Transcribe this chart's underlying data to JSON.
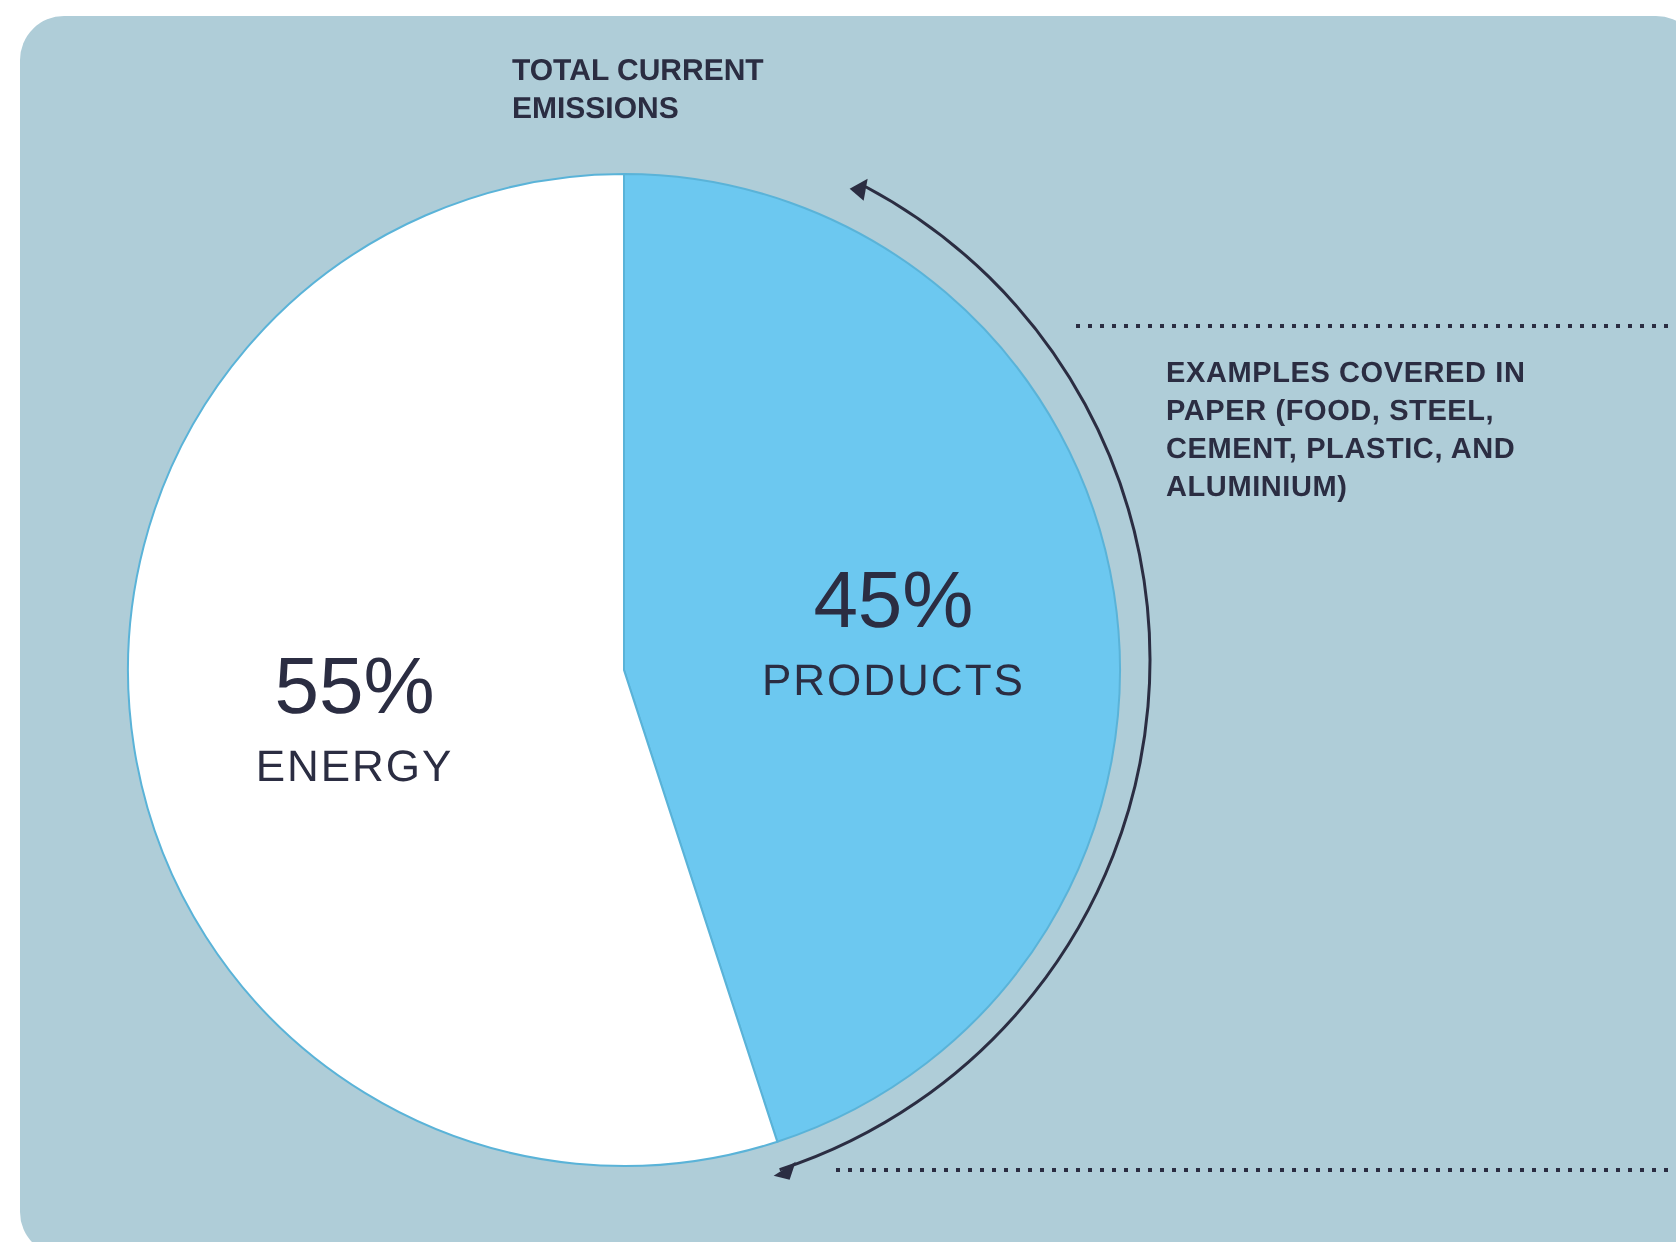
{
  "chart_data": {
    "type": "pie",
    "title": "TOTAL CURRENT EMISSIONS",
    "categories": [
      "PRODUCTS",
      "ENERGY"
    ],
    "values": [
      45,
      55
    ],
    "colors": [
      "#6cc8f0",
      "#ffffff"
    ],
    "value_labels": [
      "45%",
      "55%"
    ],
    "annotations": [
      "EXAMPLES COVERED IN PAPER (FOOD, STEEL, CEMENT, PLASTIC, AND ALUMINIUM)"
    ]
  }
}
